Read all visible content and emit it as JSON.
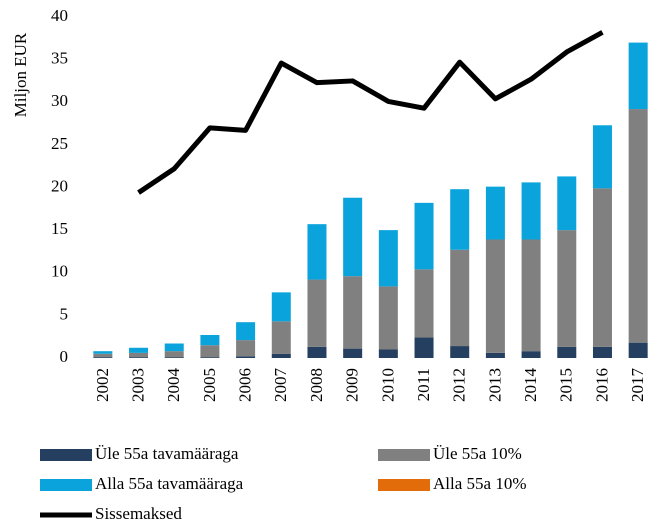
{
  "chart_data": {
    "type": "bar",
    "stacked": true,
    "y_label": "Miljon EUR",
    "categories": [
      "2002",
      "2003",
      "2004",
      "2005",
      "2006",
      "2007",
      "2008",
      "2009",
      "2010",
      "2011",
      "2012",
      "2013",
      "2014",
      "2015",
      "2016",
      "2017"
    ],
    "ylim": [
      0,
      40
    ],
    "yticks": [
      0,
      5,
      10,
      15,
      20,
      25,
      30,
      35,
      40
    ],
    "grid": false,
    "legend": "bottom",
    "series": [
      {
        "name": "Üle 55a tavamääraga",
        "type": "bar",
        "color": "#243f60",
        "values": [
          0.1,
          0.1,
          0.1,
          0.1,
          0.2,
          0.5,
          1.3,
          1.1,
          1.0,
          2.4,
          1.4,
          0.6,
          0.8,
          1.3,
          1.3,
          1.8
        ]
      },
      {
        "name": "Üle 55a 10%",
        "type": "bar",
        "color": "#808080",
        "values": [
          0.4,
          0.5,
          0.7,
          1.4,
          1.9,
          3.8,
          7.9,
          8.5,
          7.4,
          8.0,
          11.3,
          13.3,
          13.1,
          13.7,
          18.6,
          27.4
        ]
      },
      {
        "name": "Alla 55a tavamääraga",
        "type": "bar",
        "color": "#0aa3dc",
        "values": [
          0.3,
          0.6,
          0.9,
          1.2,
          2.1,
          3.4,
          6.5,
          9.2,
          6.6,
          7.8,
          7.1,
          6.2,
          6.7,
          6.3,
          7.4,
          7.8
        ]
      },
      {
        "name": "Alla 55a 10%",
        "type": "bar",
        "color": "#e36c0a",
        "values": [
          0,
          0,
          0,
          0,
          0,
          0,
          0,
          0,
          0,
          0,
          0,
          0,
          0,
          0,
          0,
          0
        ]
      },
      {
        "name": "Sissemaksed",
        "type": "line",
        "color": "#000000",
        "values": [
          null,
          19.4,
          22.2,
          27.0,
          26.7,
          34.6,
          32.3,
          32.5,
          30.1,
          29.3,
          34.7,
          30.4,
          32.7,
          35.9,
          38.2,
          null
        ]
      }
    ]
  }
}
